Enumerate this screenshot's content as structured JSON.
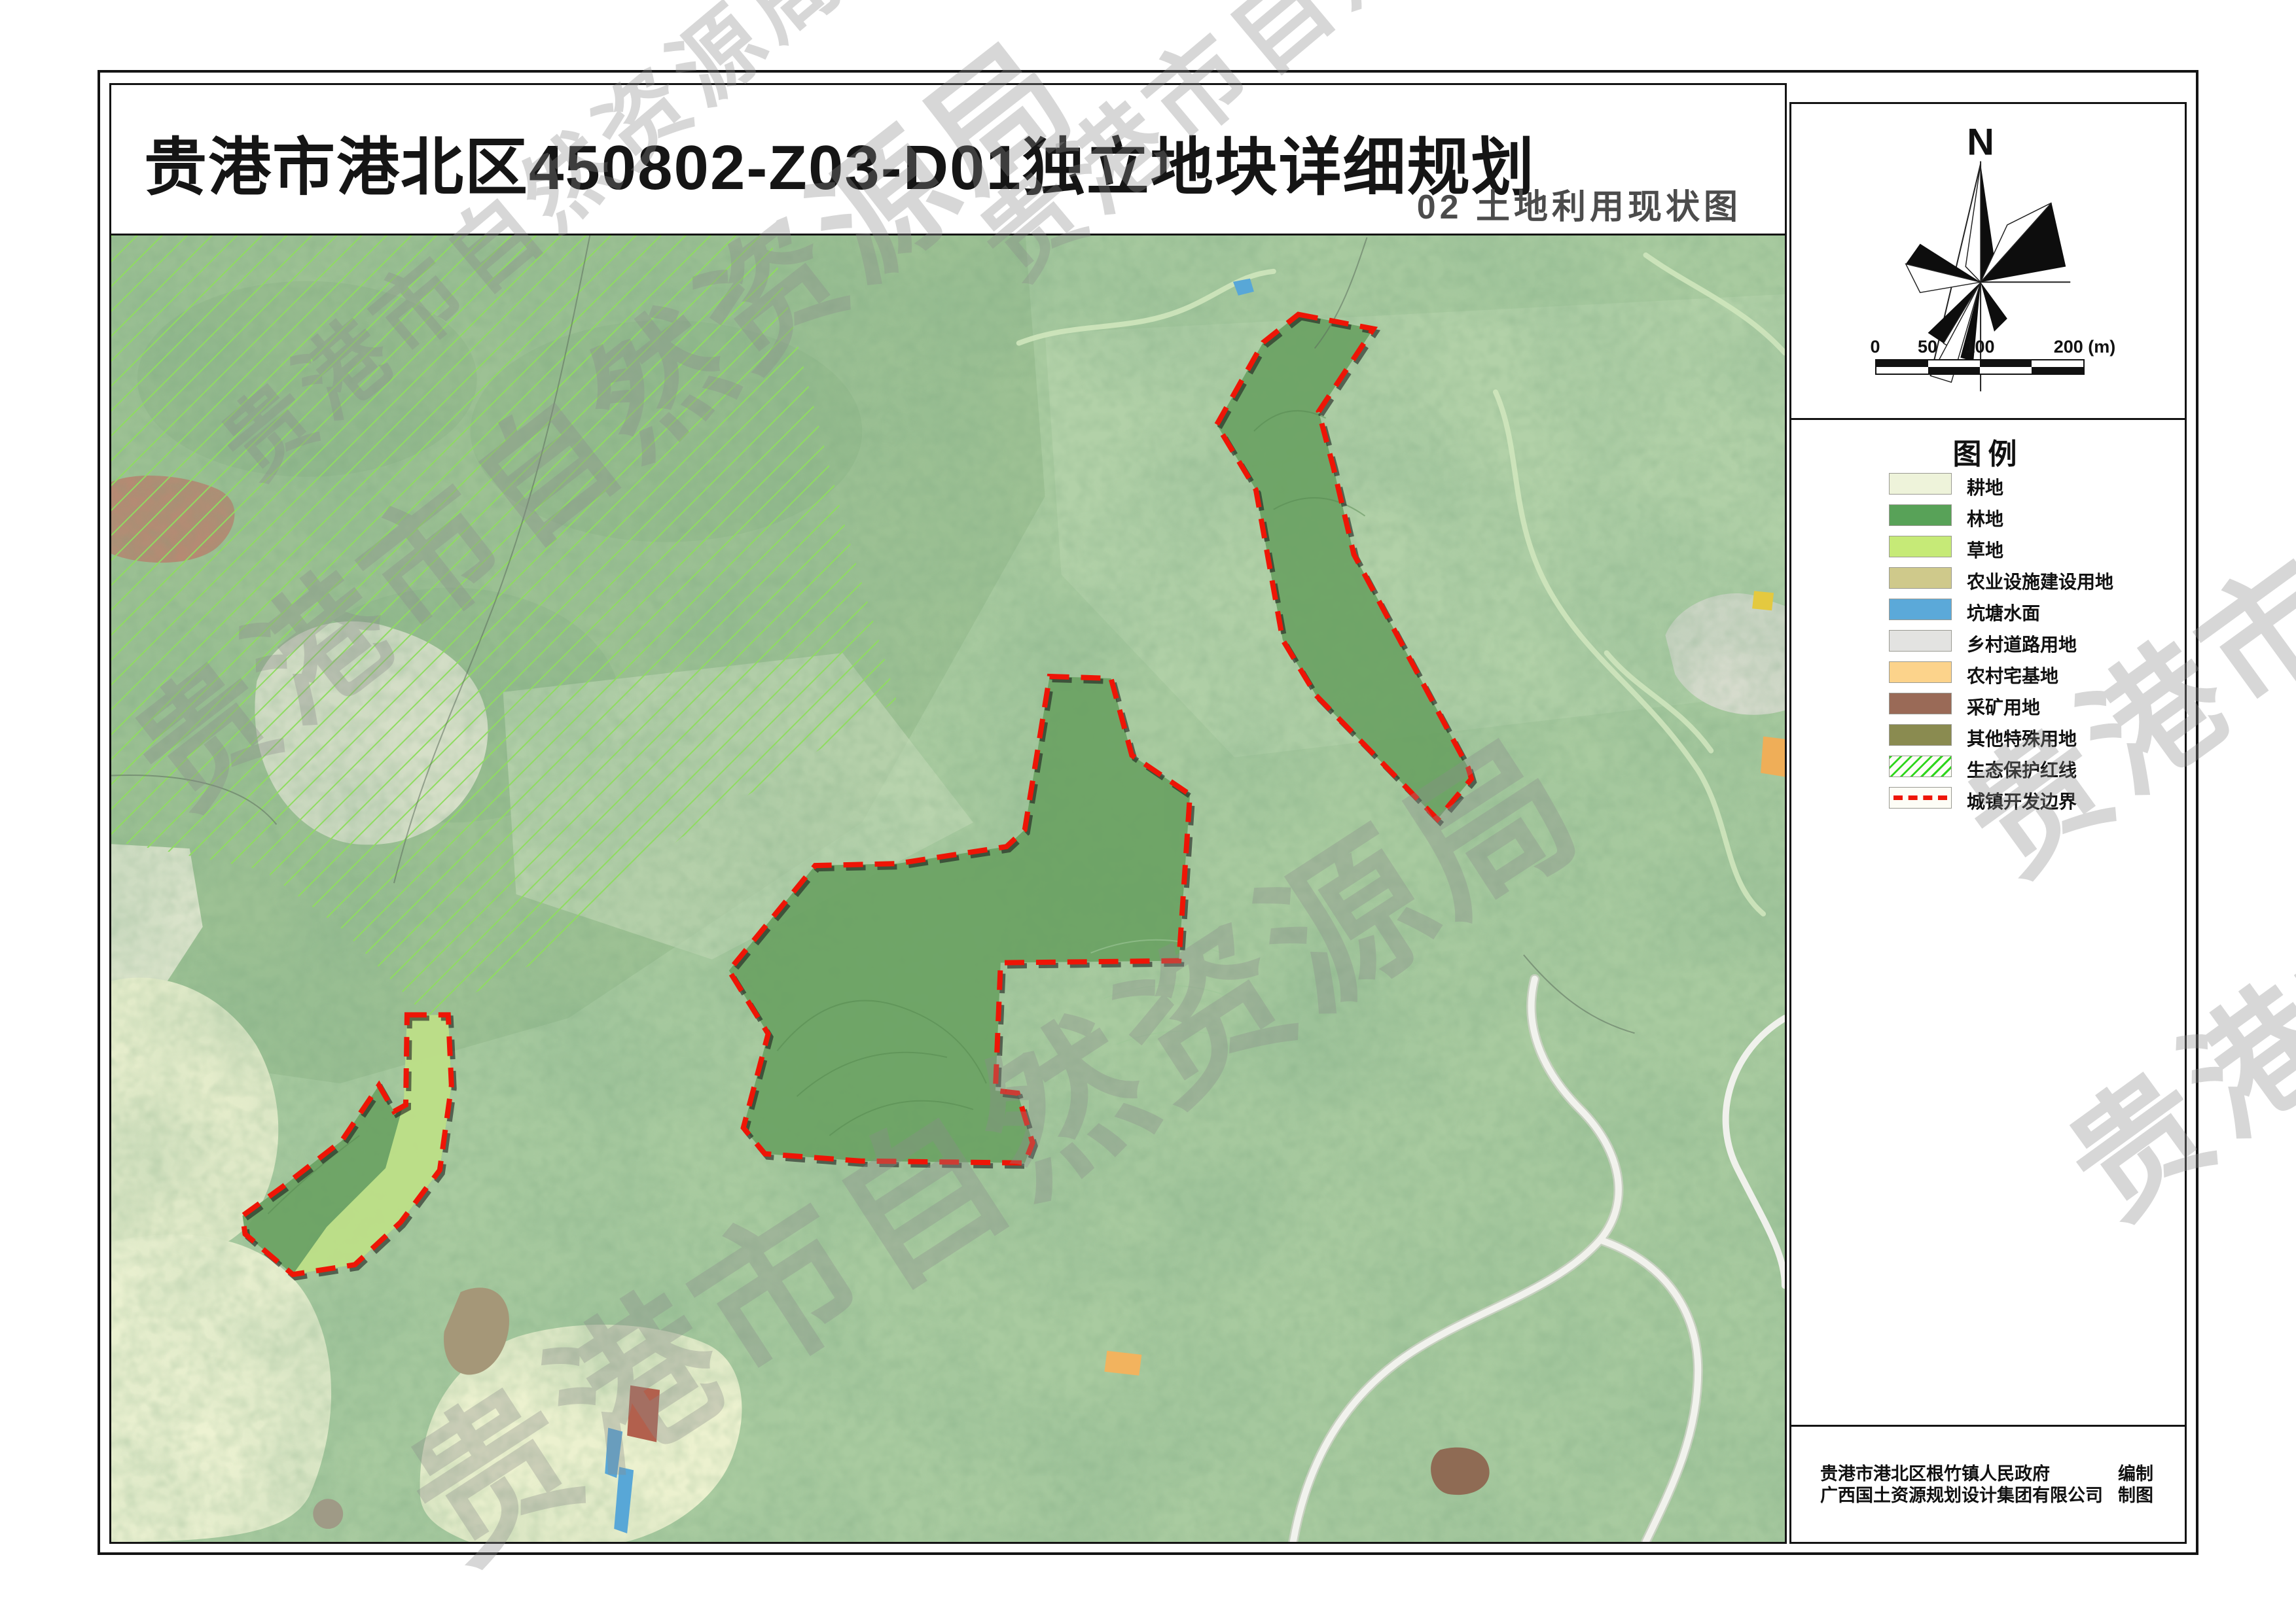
{
  "document": {
    "title": "贵港市港北区450802-Z03-D01独立地块详细规划",
    "subtitle": "02 土地利用现状图"
  },
  "compass": {
    "label": "N"
  },
  "scale_bar": {
    "labels": [
      {
        "text": "0",
        "pos": 128
      },
      {
        "text": "50",
        "pos": 208
      },
      {
        "text": "100",
        "pos": 288
      },
      {
        "text": "200 (m)",
        "pos": 448
      }
    ],
    "cells_top": [
      "#111111",
      "#ffffff",
      "#111111",
      "#ffffff"
    ],
    "cells_bottom": [
      "#ffffff",
      "#111111",
      "#ffffff",
      "#111111"
    ]
  },
  "legend": {
    "title": "图例",
    "items": [
      {
        "label": "耕地",
        "color": "#eef3da",
        "style": "fill"
      },
      {
        "label": "林地",
        "color": "#58a258",
        "style": "fill"
      },
      {
        "label": "草地",
        "color": "#c6ea77",
        "style": "fill"
      },
      {
        "label": "农业设施建设用地",
        "color": "#cfc98b",
        "style": "fill"
      },
      {
        "label": "坑塘水面",
        "color": "#5ba9d9",
        "style": "fill"
      },
      {
        "label": "乡村道路用地",
        "color": "#e3e3e1",
        "style": "fill"
      },
      {
        "label": "农村宅基地",
        "color": "#fcd38b",
        "style": "fill"
      },
      {
        "label": "采矿用地",
        "color": "#9a6a57",
        "style": "fill"
      },
      {
        "label": "其他特殊用地",
        "color": "#8a8b50",
        "style": "fill"
      },
      {
        "label": "生态保护红线",
        "color": "#2fd51c",
        "style": "hatch"
      },
      {
        "label": "城镇开发边界",
        "color": "#ee1506",
        "style": "dashed"
      }
    ]
  },
  "credits": {
    "rows": [
      {
        "org": "贵港市港北区根竹镇人民政府",
        "role": "编制"
      },
      {
        "org": "广西国土资源规划设计集团有限公司",
        "role": "制图"
      }
    ]
  },
  "watermark": {
    "text": "贵港市自然资源局"
  },
  "map": {
    "colors": {
      "base": "#a9cba0",
      "forest_dark": "#9cc094",
      "parcel_forest": "#6aa263",
      "boundary_red": "#ee1506",
      "eco_hatch_green": "#8fdc60",
      "cultivated_pale": "#edf2d2",
      "grass_strip": "#bfe08a",
      "pond_blue": "#58a7d7",
      "road_white": "#f3f3ee",
      "bare_brown": "#a59778",
      "mining_red_brown": "#b2604d",
      "homestead_orange": "#f2b35e"
    }
  }
}
